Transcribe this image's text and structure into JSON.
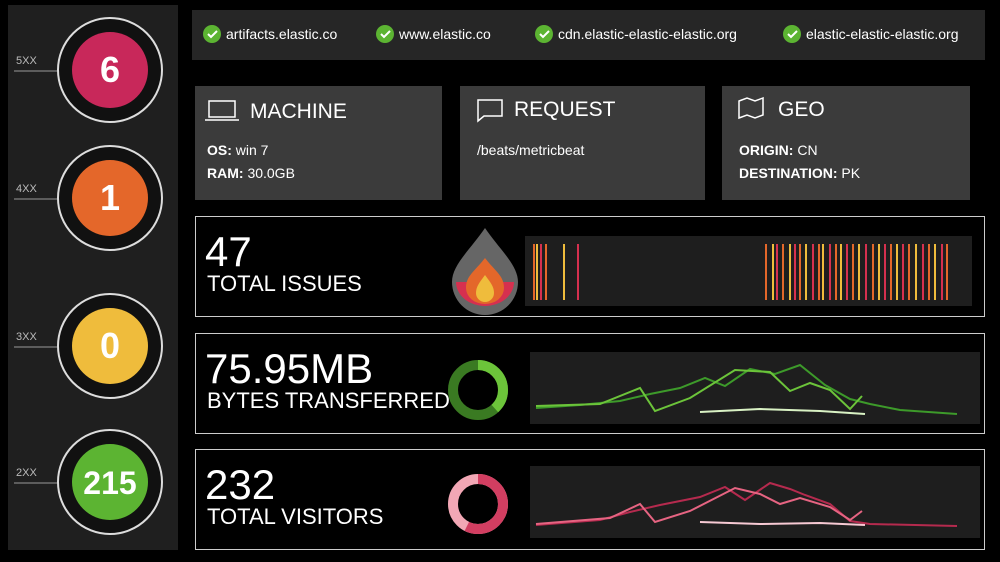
{
  "status_codes": [
    {
      "label": "5XX",
      "count": 6,
      "color": "#c8285a"
    },
    {
      "label": "4XX",
      "count": 1,
      "color": "#e4672a"
    },
    {
      "label": "3XX",
      "count": 0,
      "color": "#efbc3c"
    },
    {
      "label": "2XX",
      "count": 215,
      "color": "#5cb432"
    }
  ],
  "hosts": [
    "artifacts.elastic.co",
    "www.elastic.co",
    "cdn.elastic-elastic-elastic.org",
    "elastic-elastic-elastic.org"
  ],
  "machine": {
    "title": "MACHINE",
    "os_label": "OS:",
    "os": "win 7",
    "ram_label": "RAM:",
    "ram": "30.0GB"
  },
  "request": {
    "title": "REQUEST",
    "path": "/beats/metricbeat"
  },
  "geo": {
    "title": "GEO",
    "origin_label": "ORIGIN:",
    "origin": "CN",
    "destination_label": "DESTINATION:",
    "destination": "PK"
  },
  "metrics": [
    {
      "value": 47,
      "label": "TOTAL ISSUES"
    },
    {
      "value": "75.95MB",
      "label": "BYTES TRANSFERRED"
    },
    {
      "value": 232,
      "label": "TOTAL VISITORS"
    }
  ]
}
